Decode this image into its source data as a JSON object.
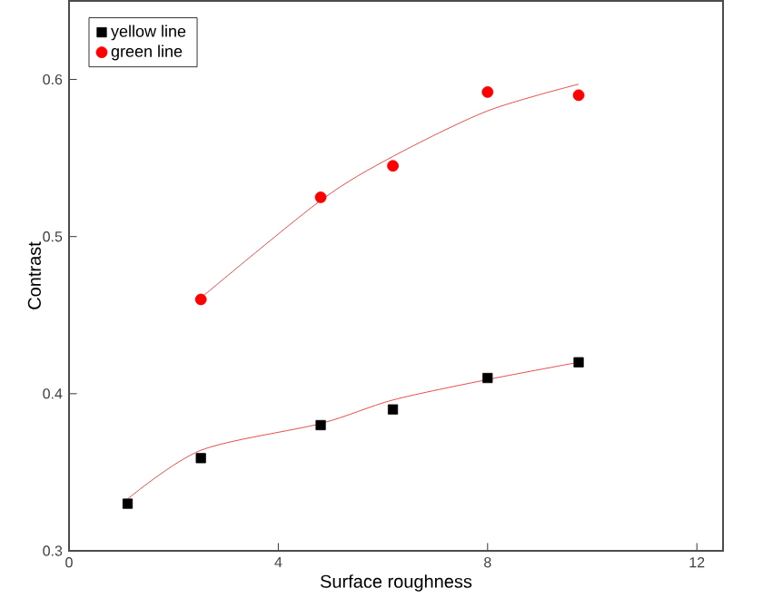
{
  "chart_data": {
    "type": "scatter",
    "xlabel": "Surface roughness",
    "ylabel": "Contrast",
    "xlim": [
      0,
      12.5
    ],
    "ylim": [
      0.3,
      0.65
    ],
    "xticks": [
      0,
      4,
      8,
      12
    ],
    "yticks": [
      0.3,
      0.4,
      0.5,
      0.6
    ],
    "grid": false,
    "legend": "top left",
    "series": [
      {
        "name": "yellow line",
        "color": "#000000",
        "marker": "square",
        "x": [
          1.12,
          2.52,
          4.81,
          6.19,
          8.0,
          9.74
        ],
        "values": [
          0.33,
          0.359,
          0.38,
          0.39,
          0.41,
          0.42
        ]
      },
      {
        "name": "green line",
        "color": "#ff0000",
        "marker": "circle",
        "x": [
          2.52,
          4.81,
          6.19,
          8.0,
          9.74
        ],
        "values": [
          0.46,
          0.525,
          0.545,
          0.592,
          0.59
        ]
      },
      {
        "type": "line",
        "color": "#e02020",
        "marker": "none",
        "x": [
          1.12,
          2.52,
          4.81,
          6.19,
          8.0,
          9.74
        ],
        "values": [
          0.333,
          0.364,
          0.381,
          0.396,
          0.409,
          0.42
        ]
      },
      {
        "type": "line",
        "color": "#e02020",
        "marker": "none",
        "x": [
          2.52,
          4.81,
          6.19,
          8.0,
          9.74
        ],
        "values": [
          0.461,
          0.523,
          0.551,
          0.58,
          0.597
        ]
      }
    ]
  }
}
